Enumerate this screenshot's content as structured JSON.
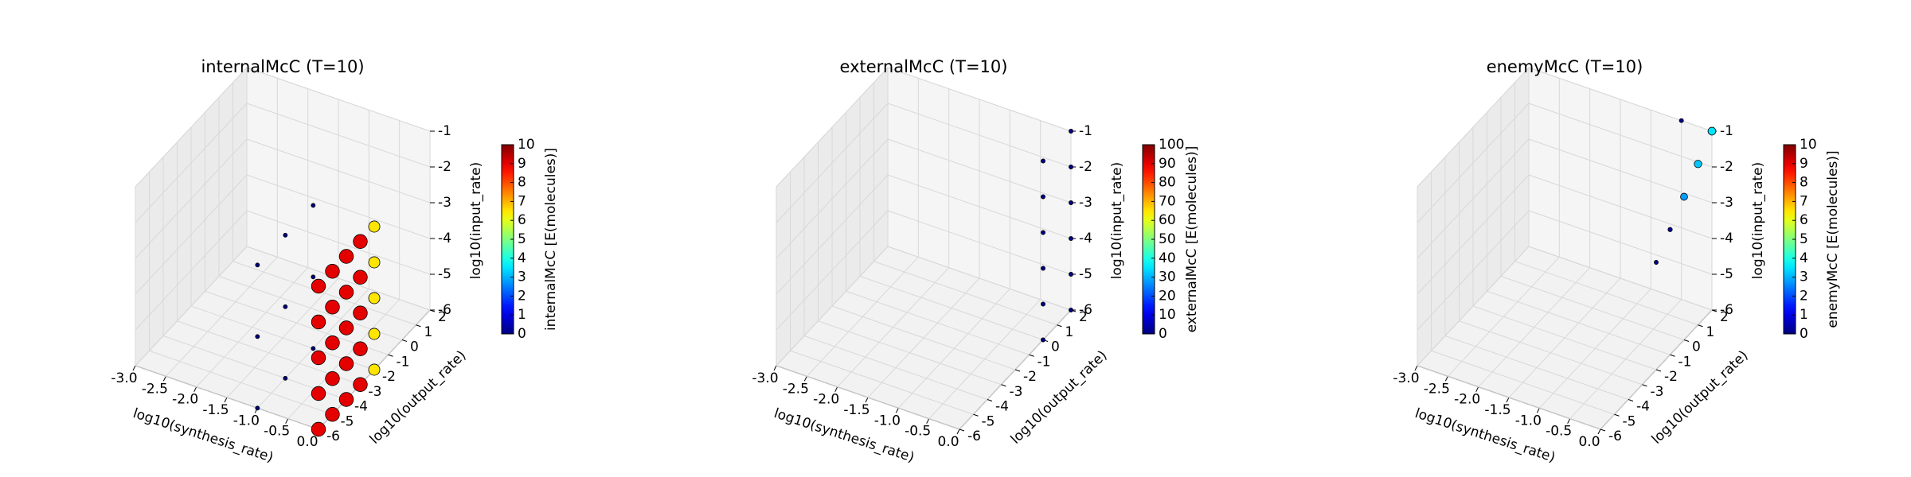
{
  "chart_data": [
    {
      "type": "scatter3d",
      "title": "internalMcC (T=10)",
      "xlabel": "log10(synthesis_rate)",
      "ylabel": "log10(output_rate)",
      "zlabel": "log10(input_rate)",
      "xlim": [
        -3,
        0
      ],
      "ylim": [
        -6,
        2
      ],
      "zlim": [
        -6,
        -1
      ],
      "xticks": [
        {
          "value": -3,
          "label": "-3.0"
        },
        -2.5,
        {
          "value": -2,
          "label": "-2.0"
        },
        -1.5,
        {
          "value": -1,
          "label": "-1.0"
        },
        -0.5,
        {
          "value": 0,
          "label": "0.0"
        }
      ],
      "yticks": [
        -6,
        -5,
        -4,
        -3,
        -2,
        -1,
        0,
        1,
        2
      ],
      "zticks": [
        -6,
        -5,
        -4,
        -3,
        -2,
        -1
      ],
      "colormap": "jet",
      "colorbar": {
        "label": "internalMcC [E(molecules)]",
        "lim": [
          0,
          10
        ],
        "ticks": [
          0,
          1,
          2,
          3,
          4,
          5,
          6,
          7,
          8,
          9,
          10
        ]
      },
      "points": {
        "x": [
          0,
          0,
          0,
          0,
          0,
          0,
          0,
          0,
          0,
          0,
          0,
          0,
          0,
          0,
          0,
          0,
          0,
          0,
          0,
          0,
          0,
          0,
          0,
          0,
          0,
          -1,
          -1,
          -1,
          -1,
          -1,
          -1,
          -1,
          -1,
          -1
        ],
        "y": [
          -6,
          -5,
          -4,
          -3,
          -2,
          -6,
          -5,
          -4,
          -3,
          -2,
          -6,
          -5,
          -4,
          -3,
          -2,
          -6,
          -5,
          -4,
          -3,
          -2,
          -6,
          -5,
          -4,
          -3,
          -2,
          -6,
          -4,
          -2,
          -6,
          -4,
          -2,
          -6,
          -4,
          -2
        ],
        "z": [
          -6,
          -6,
          -6,
          -6,
          -6,
          -5,
          -5,
          -5,
          -5,
          -5,
          -4,
          -4,
          -4,
          -4,
          -4,
          -3,
          -3,
          -3,
          -3,
          -3,
          -2,
          -2,
          -2,
          -2,
          -2,
          -6,
          -6,
          -6,
          -4,
          -4,
          -4,
          -2,
          -2,
          -2
        ],
        "c": [
          9,
          9,
          9,
          9,
          6.5,
          9,
          9,
          9,
          9,
          6.5,
          9,
          9,
          9,
          9,
          6.5,
          9,
          9,
          9,
          9,
          6.5,
          9,
          9,
          9,
          9,
          6.5,
          0,
          0,
          0,
          0,
          0,
          0,
          0,
          0,
          0
        ]
      }
    },
    {
      "type": "scatter3d",
      "title": "externalMcC (T=10)",
      "xlabel": "log10(synthesis_rate)",
      "ylabel": "log10(output_rate)",
      "zlabel": "log10(input_rate)",
      "xlim": [
        -3,
        0
      ],
      "ylim": [
        -6,
        2
      ],
      "zlim": [
        -6,
        -1
      ],
      "xticks": [
        {
          "value": -3,
          "label": "-3.0"
        },
        -2.5,
        {
          "value": -2,
          "label": "-2.0"
        },
        -1.5,
        {
          "value": -1,
          "label": "-1.0"
        },
        -0.5,
        {
          "value": 0,
          "label": "0.0"
        }
      ],
      "yticks": [
        -6,
        -5,
        -4,
        -3,
        -2,
        -1,
        0,
        1,
        2
      ],
      "zticks": [
        -6,
        -5,
        -4,
        -3,
        -2,
        -1
      ],
      "colormap": "jet",
      "colorbar": {
        "label": "externalMcC [E(molecules)]",
        "lim": [
          0,
          100
        ],
        "ticks": [
          0,
          10,
          20,
          30,
          40,
          50,
          60,
          70,
          80,
          90,
          100
        ]
      },
      "points": {
        "x": [
          0,
          0,
          0,
          0,
          0,
          0,
          0,
          0,
          0,
          0,
          0,
          0
        ],
        "y": [
          2,
          2,
          2,
          2,
          2,
          2,
          0,
          0,
          0,
          0,
          0,
          0
        ],
        "z": [
          -6,
          -5,
          -4,
          -3,
          -2,
          -1,
          -6,
          -5,
          -4,
          -3,
          -2,
          -1
        ],
        "c": [
          1,
          1,
          1,
          1,
          1,
          1,
          1,
          1,
          1,
          1,
          1,
          1
        ]
      }
    },
    {
      "type": "scatter3d",
      "title": "enemyMcC (T=10)",
      "xlabel": "log10(synthesis_rate)",
      "ylabel": "log10(output_rate)",
      "zlabel": "log10(input_rate)",
      "xlim": [
        -3,
        0
      ],
      "ylim": [
        -6,
        2
      ],
      "zlim": [
        -6,
        -1
      ],
      "xticks": [
        {
          "value": -3,
          "label": "-3.0"
        },
        -2.5,
        {
          "value": -2,
          "label": "-2.0"
        },
        -1.5,
        {
          "value": -1,
          "label": "-1.0"
        },
        -0.5,
        {
          "value": 0,
          "label": "0.0"
        }
      ],
      "yticks": [
        -6,
        -5,
        -4,
        -3,
        -2,
        -1,
        0,
        1,
        2
      ],
      "zticks": [
        -6,
        -5,
        -4,
        -3,
        -2,
        -1
      ],
      "colormap": "jet",
      "colorbar": {
        "label": "enemyMcC [E(molecules)]",
        "lim": [
          0,
          10
        ],
        "ticks": [
          0,
          1,
          2,
          3,
          4,
          5,
          6,
          7,
          8,
          9,
          10
        ]
      },
      "points": {
        "x": [
          0,
          0,
          0,
          0,
          0,
          -0.5
        ],
        "y": [
          2,
          1,
          0,
          -1,
          -2,
          2
        ],
        "z": [
          -1,
          -1.5,
          -2,
          -2.5,
          -3,
          -1
        ],
        "c": [
          3.5,
          3.2,
          2.8,
          0.3,
          0.1,
          0.1
        ]
      }
    }
  ]
}
